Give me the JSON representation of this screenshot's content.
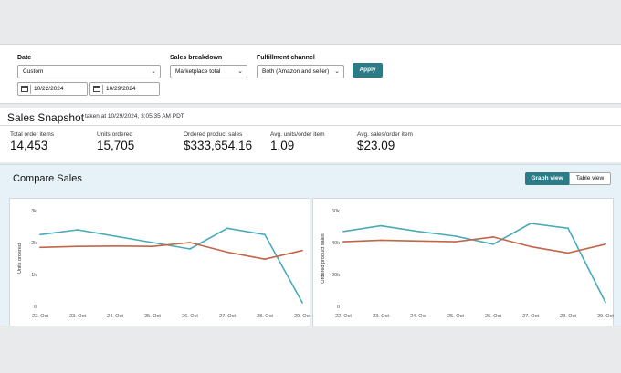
{
  "filters": {
    "date_label": "Date",
    "date_select": "Custom",
    "date_from": "10/22/2024",
    "date_to": "10/29/2024",
    "breakdown_label": "Sales breakdown",
    "breakdown_select": "Marketplace total",
    "fulfillment_label": "Fulfillment channel",
    "fulfillment_select": "Both (Amazon and seller)",
    "apply_label": "Apply"
  },
  "snapshot": {
    "title": "Sales Snapshot",
    "taken_at": "taken at 10/29/2024, 3:05:35 AM PDT",
    "metrics": [
      {
        "label": "Total order items",
        "value": "14,453"
      },
      {
        "label": "Units ordered",
        "value": "15,705"
      },
      {
        "label": "Ordered product sales",
        "value": "$333,654.16"
      },
      {
        "label": "Avg. units/order item",
        "value": "1.09"
      },
      {
        "label": "Avg. sales/order item",
        "value": "$23.09"
      }
    ]
  },
  "compare": {
    "title": "Compare Sales",
    "graph_view_label": "Graph view",
    "table_view_label": "Table view"
  },
  "colors": {
    "accent": "#2b7c87",
    "series_today": "#4aabb8",
    "series_compare": "#c0664a"
  },
  "chart_data": [
    {
      "type": "line",
      "ylabel": "Units ordered",
      "categories": [
        "22. Oct",
        "23. Oct",
        "24. Oct",
        "25. Oct",
        "26. Oct",
        "27. Oct",
        "28. Oct",
        "29. Oct"
      ],
      "ytick_labels": [
        "0",
        "1k",
        "2k",
        "3k"
      ],
      "ylim": [
        0,
        3000
      ],
      "series": [
        {
          "values": [
            2250,
            2400,
            2200,
            2000,
            1800,
            2450,
            2250,
            120
          ],
          "color": "#4aabb8"
        },
        {
          "values": [
            1850,
            1880,
            1890,
            1880,
            2000,
            1700,
            1480,
            1750
          ],
          "color": "#c0664a"
        }
      ],
      "grid": false
    },
    {
      "type": "line",
      "ylabel": "Ordered product sales",
      "categories": [
        "22. Oct",
        "23. Oct",
        "24. Oct",
        "25. Oct",
        "26. Oct",
        "27. Oct",
        "28. Oct",
        "29. Oct"
      ],
      "ytick_labels": [
        "0",
        "20k",
        "40k",
        "60k"
      ],
      "ylim": [
        0,
        60000
      ],
      "series": [
        {
          "values": [
            47000,
            50500,
            47000,
            44000,
            39000,
            52000,
            49000,
            2500
          ],
          "color": "#4aabb8"
        },
        {
          "values": [
            40500,
            41500,
            41000,
            40500,
            43500,
            37500,
            33500,
            39000
          ],
          "color": "#c0664a"
        }
      ],
      "grid": false
    }
  ]
}
